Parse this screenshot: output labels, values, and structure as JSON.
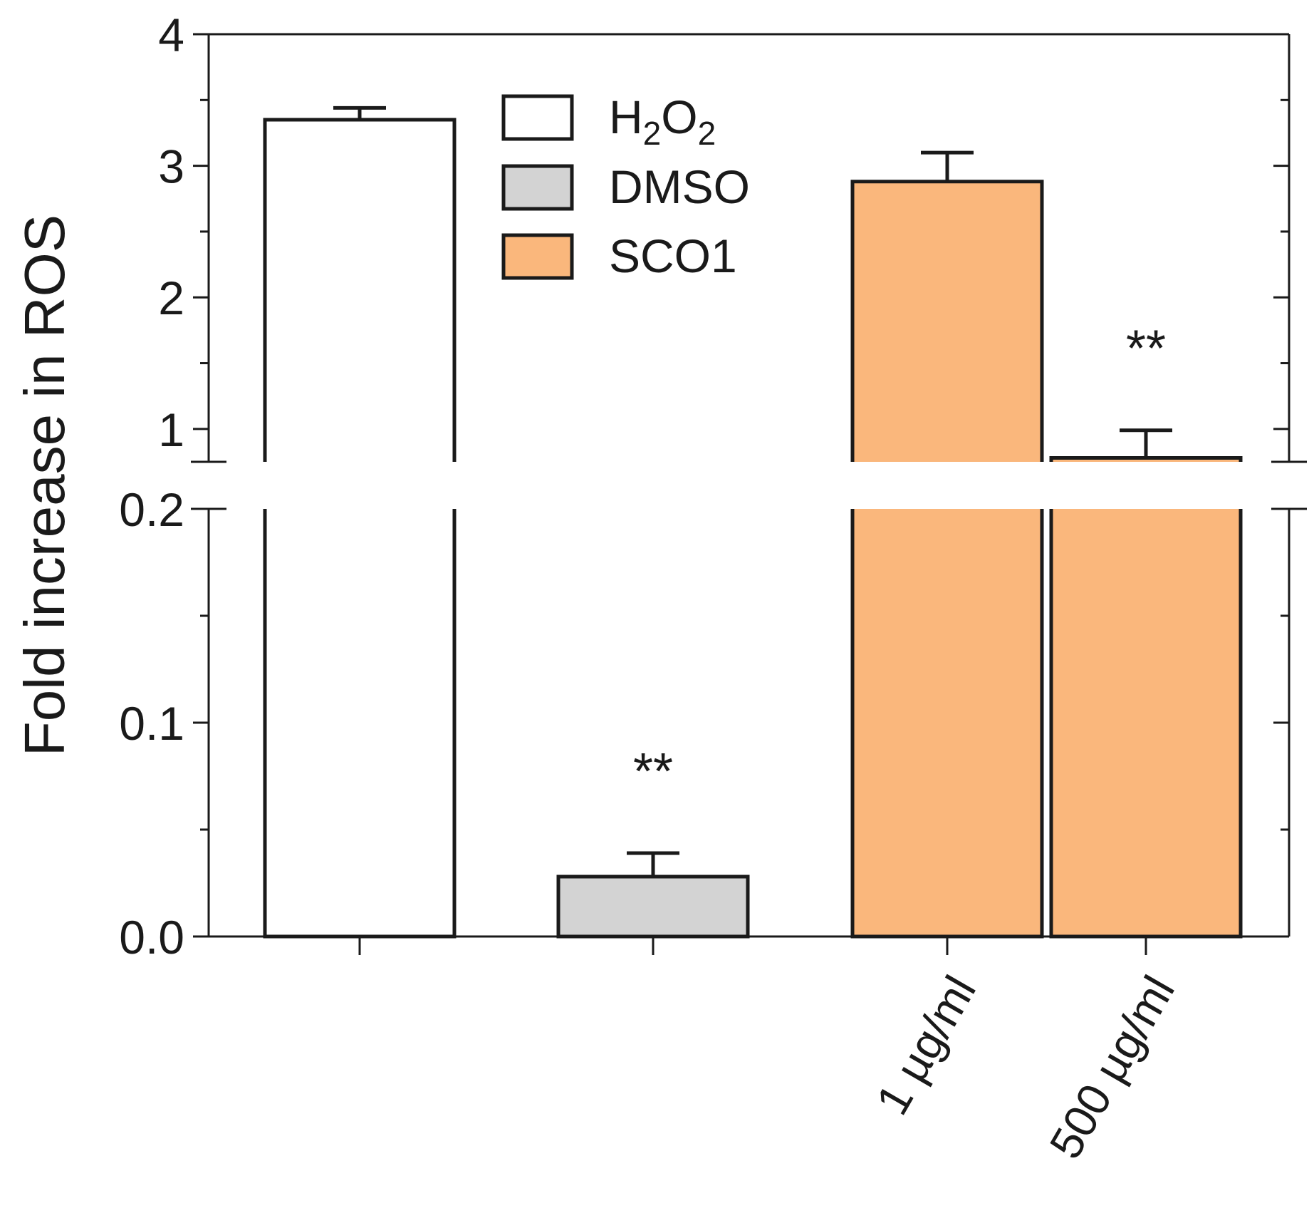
{
  "chart_data": {
    "type": "bar",
    "title": "",
    "xlabel": "",
    "ylabel": "Fold increase in ROS",
    "axis_break": {
      "lower_range": [
        0.0,
        0.2
      ],
      "upper_range": [
        0.75,
        4
      ]
    },
    "lower_ticks": [
      "0.0",
      "0.1",
      "0.2"
    ],
    "lower_tick_values": [
      0.0,
      0.1,
      0.2
    ],
    "upper_ticks": [
      "1",
      "2",
      "3",
      "4"
    ],
    "upper_tick_values": [
      1,
      2,
      3,
      4
    ],
    "categories": [
      "",
      "",
      "1 µg/ml",
      "500 µg/ml"
    ],
    "bars": [
      {
        "series": "H2O2",
        "value": 3.35,
        "error": 0.09,
        "significance": ""
      },
      {
        "series": "DMSO",
        "value": 0.028,
        "error": 0.011,
        "significance": "**"
      },
      {
        "series": "SCO1",
        "value": 2.88,
        "error": 0.22,
        "significance": ""
      },
      {
        "series": "SCO1",
        "value": 0.78,
        "error": 0.21,
        "significance": "**"
      }
    ],
    "legend": {
      "position": "top-center",
      "entries": [
        {
          "name": "H2O2",
          "base": "H",
          "sub1": "2",
          "mid": "O",
          "sub2": "2",
          "color": "#ffffff"
        },
        {
          "name": "DMSO",
          "label": "DMSO",
          "color": "#d3d3d3"
        },
        {
          "name": "SCO1",
          "label": "SCO1",
          "color": "#fab77c"
        }
      ]
    },
    "colors": {
      "H2O2": "#ffffff",
      "DMSO": "#d3d3d3",
      "SCO1": "#fab77c",
      "axis": "#1a1a1a"
    }
  }
}
